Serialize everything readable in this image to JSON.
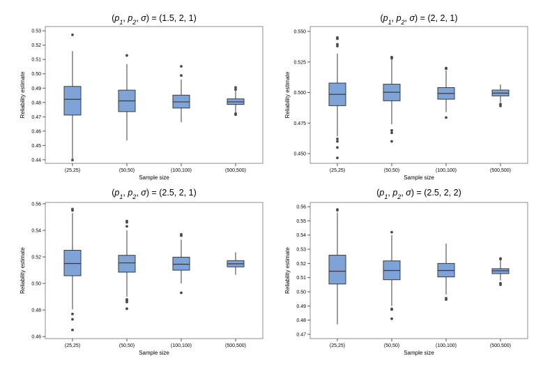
{
  "colors": {
    "box_fill": "#7ea3d6",
    "box_stroke": "#3a3a3a",
    "frame": "#8c8c8c",
    "outlier": "#4a4a4a"
  },
  "chart_data": [
    {
      "type": "box",
      "title": "(p₁, p₂, σ) = (1.5, 2, 1)",
      "title_params": "(p1, p2, σ)",
      "title_values": "(1.5, 2, 1)",
      "xlabel": "Sample size",
      "ylabel": "Reliability estimate",
      "categories": [
        "(25,25)",
        "(50,50)",
        "(100,100)",
        "(500,500)"
      ],
      "ylim": [
        0.4375,
        0.533
      ],
      "yticks": [
        0.44,
        0.45,
        0.46,
        0.47,
        0.48,
        0.49,
        0.5,
        0.51,
        0.52,
        0.53
      ],
      "ytick_labels": [
        "0.44",
        "0.45",
        "0.46",
        "0.47",
        "0.48",
        "0.49",
        "0.50",
        "0.51",
        "0.52",
        "0.53"
      ],
      "boxes": [
        {
          "whisker_low": 0.4395,
          "q1": 0.4712,
          "median": 0.4822,
          "q3": 0.4912,
          "whisker_high": 0.5158,
          "outliers": [
            0.5272,
            0.4398
          ]
        },
        {
          "whisker_low": 0.4535,
          "q1": 0.4736,
          "median": 0.4811,
          "q3": 0.4886,
          "whisker_high": 0.5068,
          "outliers": [
            0.5128
          ]
        },
        {
          "whisker_low": 0.4662,
          "q1": 0.4761,
          "median": 0.4804,
          "q3": 0.4851,
          "whisker_high": 0.496,
          "outliers": [
            0.4988,
            0.5052
          ]
        },
        {
          "whisker_low": 0.4724,
          "q1": 0.4786,
          "median": 0.4804,
          "q3": 0.4825,
          "whisker_high": 0.488,
          "outliers": [
            0.489,
            0.4905,
            0.4722,
            0.4715
          ]
        }
      ]
    },
    {
      "type": "box",
      "title": "(p₁, p₂, σ) = (2, 2, 1)",
      "title_params": "(p1, p2, σ)",
      "title_values": "(2, 2, 1)",
      "xlabel": "Sample size",
      "ylabel": "Reliability estimate",
      "categories": [
        "(25,25)",
        "(50,50)",
        "(100,100)",
        "(500,500)"
      ],
      "ylim": [
        0.442,
        0.554
      ],
      "yticks": [
        0.45,
        0.475,
        0.5,
        0.525,
        0.55
      ],
      "ytick_labels": [
        "0.450",
        "0.475",
        "0.500",
        "0.525",
        "0.550"
      ],
      "boxes": [
        {
          "whisker_low": 0.464,
          "q1": 0.4892,
          "median": 0.4985,
          "q3": 0.5077,
          "whisker_high": 0.5318,
          "outliers": [
            0.538,
            0.5395,
            0.544,
            0.545,
            0.462,
            0.46,
            0.455,
            0.4465
          ]
        },
        {
          "whisker_low": 0.474,
          "q1": 0.4932,
          "median": 0.5002,
          "q3": 0.5068,
          "whisker_high": 0.527,
          "outliers": [
            0.528,
            0.529,
            0.469,
            0.467,
            0.46
          ]
        },
        {
          "whisker_low": 0.484,
          "q1": 0.4945,
          "median": 0.4992,
          "q3": 0.504,
          "whisker_high": 0.518,
          "outliers": [
            0.52,
            0.5195,
            0.4795
          ]
        },
        {
          "whisker_low": 0.492,
          "q1": 0.4972,
          "median": 0.4995,
          "q3": 0.502,
          "whisker_high": 0.5065,
          "outliers": [
            0.4905,
            0.489
          ]
        }
      ]
    },
    {
      "type": "box",
      "title": "(p₁, p₂, σ) = (2.5, 2, 1)",
      "title_params": "(p1, p2, σ)",
      "title_values": "(2.5, 2, 1)",
      "xlabel": "Sample size",
      "ylabel": "Reliability estimate",
      "categories": [
        "(25,25)",
        "(50,50)",
        "(100,100)",
        "(500,500)"
      ],
      "ylim": [
        0.4585,
        0.561
      ],
      "yticks": [
        0.46,
        0.48,
        0.5,
        0.52,
        0.54,
        0.56
      ],
      "ytick_labels": [
        "0.46",
        "0.48",
        "0.50",
        "0.52",
        "0.54",
        "0.56"
      ],
      "boxes": [
        {
          "whisker_low": 0.4805,
          "q1": 0.5058,
          "median": 0.515,
          "q3": 0.525,
          "whisker_high": 0.553,
          "outliers": [
            0.555,
            0.556,
            0.477,
            0.473,
            0.465
          ]
        },
        {
          "whisker_low": 0.49,
          "q1": 0.5085,
          "median": 0.5155,
          "q3": 0.5212,
          "whisker_high": 0.54,
          "outliers": [
            0.543,
            0.546,
            0.547,
            0.488,
            0.487,
            0.486,
            0.481
          ]
        },
        {
          "whisker_low": 0.5,
          "q1": 0.51,
          "median": 0.5145,
          "q3": 0.5198,
          "whisker_high": 0.533,
          "outliers": [
            0.536,
            0.537,
            0.493
          ]
        },
        {
          "whisker_low": 0.5065,
          "q1": 0.5125,
          "median": 0.5148,
          "q3": 0.5172,
          "whisker_high": 0.5235,
          "outliers": []
        }
      ]
    },
    {
      "type": "box",
      "title": "(p₁, p₂, σ) = (2.5, 2, 2)",
      "title_params": "(p1, p2, σ)",
      "title_values": "(2.5, 2, 2)",
      "xlabel": "Sample size",
      "ylabel": "Reliability estimate",
      "categories": [
        "(25,25)",
        "(50,50)",
        "(100,100)",
        "(500,500)"
      ],
      "ylim": [
        0.467,
        0.563
      ],
      "yticks": [
        0.47,
        0.48,
        0.49,
        0.5,
        0.51,
        0.52,
        0.53,
        0.54,
        0.55,
        0.56
      ],
      "ytick_labels": [
        "0.47",
        "0.48",
        "0.49",
        "0.50",
        "0.51",
        "0.52",
        "0.53",
        "0.54",
        "0.55",
        "0.56"
      ],
      "boxes": [
        {
          "whisker_low": 0.477,
          "q1": 0.5055,
          "median": 0.5145,
          "q3": 0.5258,
          "whisker_high": 0.556,
          "outliers": [
            0.5575,
            0.558
          ]
        },
        {
          "whisker_low": 0.49,
          "q1": 0.5085,
          "median": 0.515,
          "q3": 0.5218,
          "whisker_high": 0.54,
          "outliers": [
            0.542,
            0.488,
            0.4875,
            0.481
          ]
        },
        {
          "whisker_low": 0.498,
          "q1": 0.5105,
          "median": 0.515,
          "q3": 0.52,
          "whisker_high": 0.534,
          "outliers": [
            0.4955,
            0.4945
          ]
        },
        {
          "whisker_low": 0.508,
          "q1": 0.5128,
          "median": 0.5148,
          "q3": 0.5163,
          "whisker_high": 0.522,
          "outliers": [
            0.523,
            0.5235,
            0.506,
            0.505
          ]
        }
      ]
    }
  ]
}
